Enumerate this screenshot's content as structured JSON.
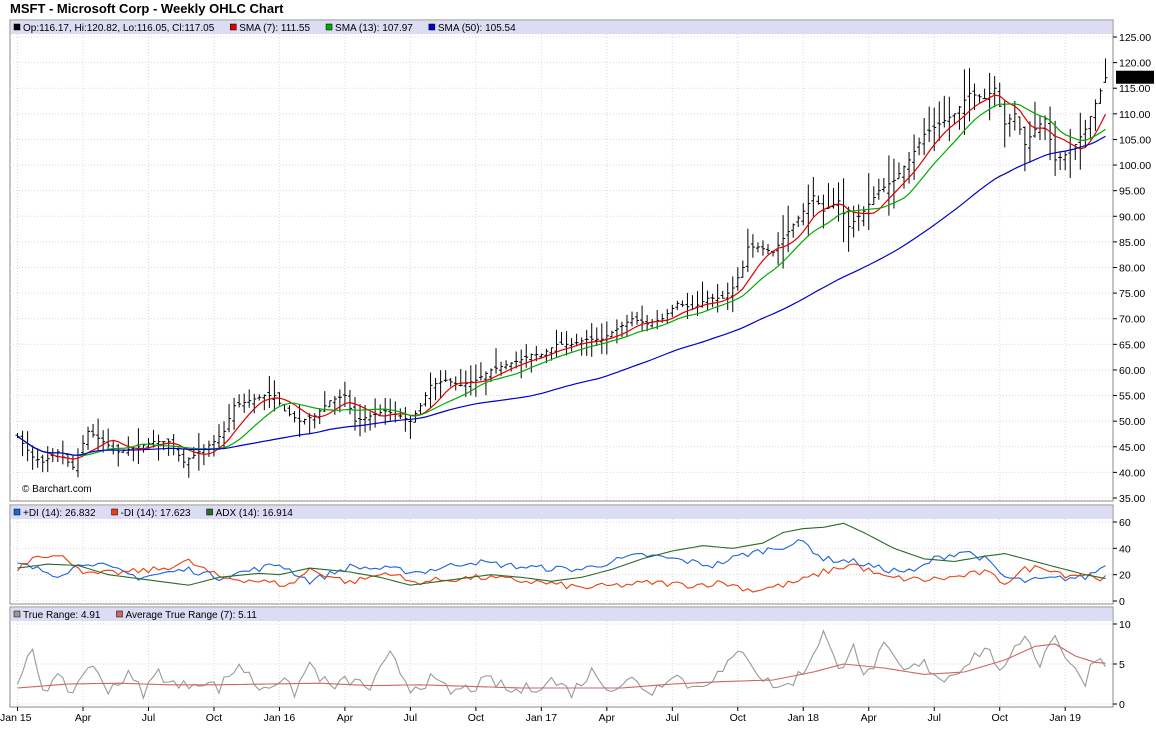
{
  "title": "MSFT - Microsoft Corp - Weekly OHLC Chart",
  "watermark": "© Barchart.com",
  "price_legend": [
    {
      "label": "Op:116.17, Hi:120.82, Lo:116.05, Cl:117.05",
      "color": "#000000"
    },
    {
      "label": "SMA (7): 111.55",
      "color": "#dd0000"
    },
    {
      "label": "SMA (13): 107.97",
      "color": "#00aa00"
    },
    {
      "label": "SMA (50): 105.54",
      "color": "#0000cc"
    }
  ],
  "dmi_legend": [
    {
      "label": "+DI (14): 26.832",
      "color": "#1e64dc"
    },
    {
      "label": "-DI (14): 17.623",
      "color": "#e84010"
    },
    {
      "label": "ADX (14): 16.914",
      "color": "#2a6a2a"
    }
  ],
  "tr_legend": [
    {
      "label": "True Range: 4.91",
      "color": "#999999"
    },
    {
      "label": "Average True Range (7): 5.11",
      "color": "#cc6666"
    }
  ],
  "last_price_label": "117.05",
  "chart_data": [
    {
      "type": "ohlc",
      "title": "MSFT - Microsoft Corp - Weekly OHLC Chart",
      "ylim": [
        35,
        125
      ],
      "y_ticks": [
        "125.00",
        "120.00",
        "115.00",
        "110.00",
        "105.00",
        "100.00",
        "95.00",
        "90.00",
        "85.00",
        "80.00",
        "75.00",
        "70.00",
        "65.00",
        "60.00",
        "55.00",
        "50.00",
        "45.00",
        "40.00",
        "35.00"
      ],
      "x_ticks": [
        "Jan 15",
        "Apr",
        "Jul",
        "Oct",
        "Jan 16",
        "Apr",
        "Jul",
        "Oct",
        "Jan 17",
        "Apr",
        "Jul",
        "Oct",
        "Jan 18",
        "Apr",
        "Jul",
        "Oct",
        "Jan 19"
      ],
      "x_tick_weeks": [
        0,
        13,
        26,
        39,
        52,
        65,
        78,
        91,
        104,
        117,
        130,
        143,
        156,
        169,
        182,
        195,
        208
      ],
      "close_anchors": [
        [
          0,
          47
        ],
        [
          3,
          43
        ],
        [
          5,
          42
        ],
        [
          8,
          44
        ],
        [
          11,
          41
        ],
        [
          14,
          48
        ],
        [
          17,
          46
        ],
        [
          20,
          44
        ],
        [
          24,
          45
        ],
        [
          27,
          46
        ],
        [
          30,
          46
        ],
        [
          33,
          42
        ],
        [
          36,
          44
        ],
        [
          39,
          46
        ],
        [
          41,
          48
        ],
        [
          43,
          53
        ],
        [
          46,
          54
        ],
        [
          49,
          55
        ],
        [
          51,
          55
        ],
        [
          53,
          52
        ],
        [
          56,
          50
        ],
        [
          59,
          51
        ],
        [
          62,
          54
        ],
        [
          65,
          55
        ],
        [
          67,
          50
        ],
        [
          70,
          51
        ],
        [
          73,
          52
        ],
        [
          76,
          51
        ],
        [
          78,
          50
        ],
        [
          80,
          53
        ],
        [
          82,
          57
        ],
        [
          85,
          58
        ],
        [
          88,
          57
        ],
        [
          91,
          58
        ],
        [
          94,
          60
        ],
        [
          97,
          61
        ],
        [
          100,
          62
        ],
        [
          102,
          63
        ],
        [
          104,
          63
        ],
        [
          107,
          65
        ],
        [
          110,
          65
        ],
        [
          113,
          66
        ],
        [
          116,
          66
        ],
        [
          119,
          68
        ],
        [
          122,
          70
        ],
        [
          125,
          69
        ],
        [
          128,
          70
        ],
        [
          131,
          73
        ],
        [
          134,
          72
        ],
        [
          137,
          74
        ],
        [
          140,
          74
        ],
        [
          142,
          76
        ],
        [
          144,
          80
        ],
        [
          145,
          84
        ],
        [
          147,
          84
        ],
        [
          150,
          83
        ],
        [
          153,
          87
        ],
        [
          156,
          91
        ],
        [
          158,
          94
        ],
        [
          160,
          91
        ],
        [
          163,
          93
        ],
        [
          165,
          88
        ],
        [
          168,
          91
        ],
        [
          171,
          95
        ],
        [
          174,
          97
        ],
        [
          177,
          101
        ],
        [
          180,
          106
        ],
        [
          183,
          108
        ],
        [
          186,
          110
        ],
        [
          189,
          114
        ],
        [
          192,
          113
        ],
        [
          194,
          115
        ],
        [
          196,
          108
        ],
        [
          198,
          110
        ],
        [
          200,
          104
        ],
        [
          202,
          107
        ],
        [
          204,
          109
        ],
        [
          206,
          101
        ],
        [
          208,
          102
        ],
        [
          210,
          104
        ],
        [
          212,
          107
        ],
        [
          214,
          112
        ],
        [
          216,
          117
        ]
      ],
      "sma_periods": [
        7,
        13,
        50
      ],
      "last": {
        "open": 116.17,
        "high": 120.82,
        "low": 116.05,
        "close": 117.05,
        "sma7": 111.55,
        "sma13": 107.97,
        "sma50": 105.54
      }
    },
    {
      "type": "line",
      "title": "DMI",
      "ylim": [
        0,
        60
      ],
      "y_ticks": [
        "60",
        "40",
        "20",
        "0"
      ],
      "series": [
        {
          "name": "+DI (14)",
          "anchors": [
            [
              0,
              28
            ],
            [
              8,
              20
            ],
            [
              14,
              30
            ],
            [
              24,
              18
            ],
            [
              34,
              24
            ],
            [
              40,
              18
            ],
            [
              52,
              28
            ],
            [
              58,
              15
            ],
            [
              66,
              26
            ],
            [
              74,
              24
            ],
            [
              80,
              22
            ],
            [
              90,
              30
            ],
            [
              100,
              26
            ],
            [
              104,
              25
            ],
            [
              112,
              24
            ],
            [
              118,
              30
            ],
            [
              124,
              35
            ],
            [
              130,
              32
            ],
            [
              138,
              27
            ],
            [
              144,
              35
            ],
            [
              150,
              40
            ],
            [
              156,
              45
            ],
            [
              160,
              32
            ],
            [
              166,
              30
            ],
            [
              172,
              24
            ],
            [
              178,
              22
            ],
            [
              182,
              32
            ],
            [
              188,
              38
            ],
            [
              192,
              32
            ],
            [
              196,
              18
            ],
            [
              200,
              15
            ],
            [
              206,
              17
            ],
            [
              212,
              18
            ],
            [
              216,
              27
            ]
          ]
        },
        {
          "name": "-DI (14)",
          "anchors": [
            [
              0,
              25
            ],
            [
              4,
              36
            ],
            [
              10,
              32
            ],
            [
              14,
              20
            ],
            [
              22,
              22
            ],
            [
              28,
              24
            ],
            [
              34,
              30
            ],
            [
              40,
              18
            ],
            [
              46,
              16
            ],
            [
              54,
              12
            ],
            [
              58,
              24
            ],
            [
              66,
              14
            ],
            [
              74,
              22
            ],
            [
              78,
              14
            ],
            [
              84,
              16
            ],
            [
              92,
              18
            ],
            [
              104,
              14
            ],
            [
              112,
              10
            ],
            [
              120,
              12
            ],
            [
              126,
              14
            ],
            [
              134,
              12
            ],
            [
              140,
              14
            ],
            [
              146,
              8
            ],
            [
              152,
              12
            ],
            [
              156,
              16
            ],
            [
              160,
              22
            ],
            [
              166,
              28
            ],
            [
              172,
              18
            ],
            [
              180,
              16
            ],
            [
              186,
              18
            ],
            [
              192,
              22
            ],
            [
              196,
              14
            ],
            [
              200,
              24
            ],
            [
              204,
              26
            ],
            [
              208,
              20
            ],
            [
              212,
              20
            ],
            [
              216,
              17
            ]
          ]
        },
        {
          "name": "ADX (14)",
          "anchors": [
            [
              0,
              25
            ],
            [
              6,
              28
            ],
            [
              12,
              27
            ],
            [
              18,
              20
            ],
            [
              26,
              16
            ],
            [
              34,
              12
            ],
            [
              40,
              18
            ],
            [
              48,
              21
            ],
            [
              52,
              20
            ],
            [
              58,
              25
            ],
            [
              66,
              22
            ],
            [
              72,
              18
            ],
            [
              78,
              12
            ],
            [
              86,
              16
            ],
            [
              94,
              20
            ],
            [
              100,
              18
            ],
            [
              106,
              15
            ],
            [
              112,
              18
            ],
            [
              118,
              24
            ],
            [
              124,
              32
            ],
            [
              130,
              38
            ],
            [
              136,
              42
            ],
            [
              142,
              40
            ],
            [
              148,
              44
            ],
            [
              152,
              52
            ],
            [
              156,
              55
            ],
            [
              160,
              56
            ],
            [
              164,
              59
            ],
            [
              168,
              52
            ],
            [
              174,
              40
            ],
            [
              180,
              32
            ],
            [
              186,
              30
            ],
            [
              192,
              34
            ],
            [
              196,
              36
            ],
            [
              200,
              32
            ],
            [
              204,
              28
            ],
            [
              208,
              24
            ],
            [
              212,
              20
            ],
            [
              216,
              17
            ]
          ]
        }
      ]
    },
    {
      "type": "line",
      "title": "True Range",
      "ylim": [
        0,
        10
      ],
      "y_ticks": [
        "10",
        "5",
        "0"
      ],
      "series": [
        {
          "name": "True Range",
          "anchors": [
            [
              0,
              2
            ],
            [
              3,
              7
            ],
            [
              5,
              2
            ],
            [
              8,
              3
            ],
            [
              11,
              1.5
            ],
            [
              14,
              5
            ],
            [
              18,
              2
            ],
            [
              22,
              3.5
            ],
            [
              25,
              1.5
            ],
            [
              28,
              4
            ],
            [
              32,
              2
            ],
            [
              36,
              3
            ],
            [
              40,
              2
            ],
            [
              44,
              5
            ],
            [
              48,
              2
            ],
            [
              52,
              3
            ],
            [
              55,
              1.5
            ],
            [
              58,
              5
            ],
            [
              62,
              2
            ],
            [
              66,
              3
            ],
            [
              70,
              2
            ],
            [
              74,
              6
            ],
            [
              78,
              2
            ],
            [
              82,
              3
            ],
            [
              86,
              1.5
            ],
            [
              90,
              2
            ],
            [
              94,
              3
            ],
            [
              98,
              1.5
            ],
            [
              102,
              2
            ],
            [
              106,
              3
            ],
            [
              110,
              1.5
            ],
            [
              114,
              4
            ],
            [
              118,
              2
            ],
            [
              122,
              3
            ],
            [
              126,
              1.5
            ],
            [
              130,
              4
            ],
            [
              134,
              2
            ],
            [
              140,
              4
            ],
            [
              144,
              7
            ],
            [
              148,
              3
            ],
            [
              152,
              2
            ],
            [
              156,
              4
            ],
            [
              160,
              9
            ],
            [
              163,
              4
            ],
            [
              166,
              8
            ],
            [
              168,
              3
            ],
            [
              172,
              7
            ],
            [
              176,
              4
            ],
            [
              180,
              5
            ],
            [
              184,
              3
            ],
            [
              188,
              5
            ],
            [
              192,
              7
            ],
            [
              196,
              4
            ],
            [
              200,
              9
            ],
            [
              203,
              5
            ],
            [
              206,
              9
            ],
            [
              208,
              6
            ],
            [
              210,
              4
            ],
            [
              212,
              3
            ],
            [
              214,
              6
            ],
            [
              216,
              5
            ]
          ]
        },
        {
          "name": "Average True Range (7)",
          "anchors": [
            [
              0,
              2
            ],
            [
              10,
              2.5
            ],
            [
              20,
              2.6
            ],
            [
              30,
              2.4
            ],
            [
              40,
              2.4
            ],
            [
              50,
              2.5
            ],
            [
              60,
              2.6
            ],
            [
              70,
              2.3
            ],
            [
              80,
              2.4
            ],
            [
              90,
              2.2
            ],
            [
              100,
              2
            ],
            [
              110,
              2
            ],
            [
              120,
              2
            ],
            [
              130,
              2.5
            ],
            [
              140,
              2.8
            ],
            [
              150,
              3
            ],
            [
              158,
              4
            ],
            [
              164,
              5
            ],
            [
              172,
              4.5
            ],
            [
              180,
              3.7
            ],
            [
              188,
              4
            ],
            [
              196,
              5.5
            ],
            [
              202,
              7.2
            ],
            [
              206,
              7.5
            ],
            [
              210,
              6
            ],
            [
              214,
              5.2
            ],
            [
              216,
              5.1
            ]
          ]
        }
      ]
    }
  ]
}
